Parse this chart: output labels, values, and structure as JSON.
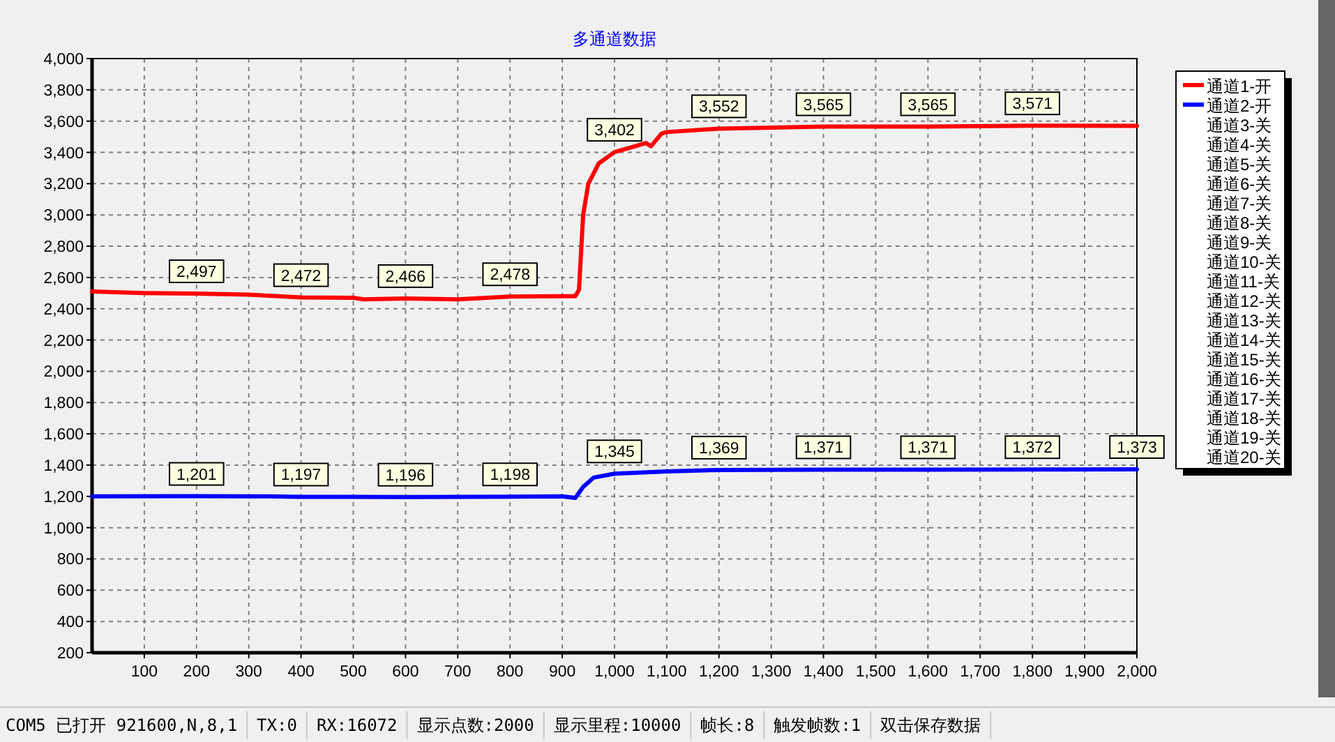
{
  "chart_data": {
    "type": "line",
    "title": "多通道数据",
    "xlim": [
      0,
      2000
    ],
    "ylim": [
      200,
      4000
    ],
    "xticks": [
      100,
      200,
      300,
      400,
      500,
      600,
      700,
      800,
      900,
      {
        "value": 1000,
        "label": "1,000"
      },
      {
        "value": 1100,
        "label": "1,100"
      },
      {
        "value": 1200,
        "label": "1,200"
      },
      {
        "value": 1300,
        "label": "1,300"
      },
      {
        "value": 1400,
        "label": "1,400"
      },
      {
        "value": 1500,
        "label": "1,500"
      },
      {
        "value": 1600,
        "label": "1,600"
      },
      {
        "value": 1700,
        "label": "1,700"
      },
      {
        "value": 1800,
        "label": "1,800"
      },
      {
        "value": 1900,
        "label": "1,900"
      },
      {
        "value": 2000,
        "label": "2,000"
      }
    ],
    "yticks": [
      200,
      400,
      600,
      800,
      {
        "value": 1000,
        "label": "1,000"
      },
      {
        "value": 1200,
        "label": "1,200"
      },
      {
        "value": 1400,
        "label": "1,400"
      },
      {
        "value": 1600,
        "label": "1,600"
      },
      {
        "value": 1800,
        "label": "1,800"
      },
      {
        "value": 2000,
        "label": "2,000"
      },
      {
        "value": 2200,
        "label": "2,200"
      },
      {
        "value": 2400,
        "label": "2,400"
      },
      {
        "value": 2600,
        "label": "2,600"
      },
      {
        "value": 2800,
        "label": "2,800"
      },
      {
        "value": 3000,
        "label": "3,000"
      },
      {
        "value": 3200,
        "label": "3,200"
      },
      {
        "value": 3400,
        "label": "3,400"
      },
      {
        "value": 3600,
        "label": "3,600"
      },
      {
        "value": 3800,
        "label": "3,800"
      },
      {
        "value": 4000,
        "label": "4,000"
      }
    ],
    "grid": true,
    "legend": "right",
    "line_style": "solid",
    "series": [
      {
        "name": "通道1-开",
        "color": "#ff0000",
        "x": [
          0,
          100,
          200,
          300,
          400,
          500,
          520,
          600,
          700,
          800,
          900,
          925,
          932,
          940,
          950,
          970,
          1000,
          1040,
          1060,
          1070,
          1090,
          1100,
          1200,
          1400,
          1600,
          1800,
          2000
        ],
        "values": [
          2510,
          2500,
          2497,
          2490,
          2472,
          2470,
          2460,
          2466,
          2460,
          2478,
          2480,
          2480,
          2520,
          3000,
          3200,
          3330,
          3402,
          3440,
          3460,
          3440,
          3520,
          3530,
          3552,
          3565,
          3565,
          3571,
          3570
        ],
        "value_labels": [
          null,
          null,
          "2,497",
          null,
          "2,472",
          null,
          null,
          "2,466",
          null,
          "2,478",
          null,
          null,
          null,
          null,
          null,
          null,
          "3,402",
          null,
          null,
          null,
          null,
          null,
          "3,552",
          "3,565",
          "3,565",
          "3,571",
          null
        ]
      },
      {
        "name": "通道2-开",
        "color": "#0000ff",
        "x": [
          0,
          200,
          300,
          340,
          400,
          600,
          800,
          900,
          925,
          940,
          960,
          1000,
          1100,
          1200,
          1400,
          1600,
          1800,
          2000
        ],
        "values": [
          1200,
          1201,
          1200,
          1200,
          1197,
          1196,
          1198,
          1200,
          1190,
          1260,
          1320,
          1345,
          1360,
          1369,
          1371,
          1371,
          1372,
          1373
        ],
        "value_labels": [
          null,
          "1,201",
          null,
          null,
          "1,197",
          "1,196",
          "1,198",
          null,
          null,
          null,
          null,
          "1,345",
          null,
          "1,369",
          "1,371",
          "1,371",
          "1,372",
          "1,373"
        ]
      },
      {
        "name": "通道3-关"
      },
      {
        "name": "通道4-关"
      },
      {
        "name": "通道5-关"
      },
      {
        "name": "通道6-关"
      },
      {
        "name": "通道7-关"
      },
      {
        "name": "通道8-关"
      },
      {
        "name": "通道9-关"
      },
      {
        "name": "通道10-关"
      },
      {
        "name": "通道11-关"
      },
      {
        "name": "通道12-关"
      },
      {
        "name": "通道13-关"
      },
      {
        "name": "通道14-关"
      },
      {
        "name": "通道15-关"
      },
      {
        "name": "通道16-关"
      },
      {
        "name": "通道17-关"
      },
      {
        "name": "通道18-关"
      },
      {
        "name": "通道19-关"
      },
      {
        "name": "通道20-关"
      }
    ],
    "annotations": [
      "COM5 已打开 921600,N,8,1",
      "TX:0",
      "RX:16072",
      "显示点数:2000",
      "显示里程:10000",
      "帧长:8",
      "触发帧数:1",
      "双击保存数据"
    ]
  }
}
